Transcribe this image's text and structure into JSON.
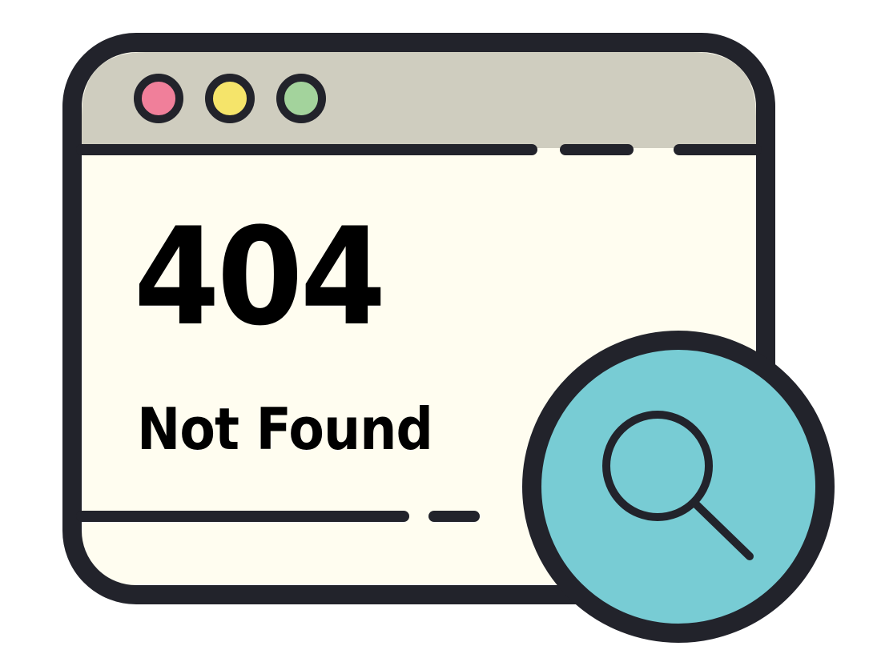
{
  "error": {
    "code": "404",
    "message": "Not Found"
  },
  "window": {
    "controls": [
      {
        "name": "close-dot",
        "color": "#f07f9a"
      },
      {
        "name": "minimize-dot",
        "color": "#f5e46a"
      },
      {
        "name": "maximize-dot",
        "color": "#a3d39c"
      }
    ]
  },
  "icons": {
    "search": "magnifier-icon"
  },
  "colors": {
    "outline": "#22232b",
    "titlebar": "#cfcdbf",
    "content_bg": "#fffdf0",
    "badge_fill": "#78ccd4",
    "text": "#000000"
  }
}
